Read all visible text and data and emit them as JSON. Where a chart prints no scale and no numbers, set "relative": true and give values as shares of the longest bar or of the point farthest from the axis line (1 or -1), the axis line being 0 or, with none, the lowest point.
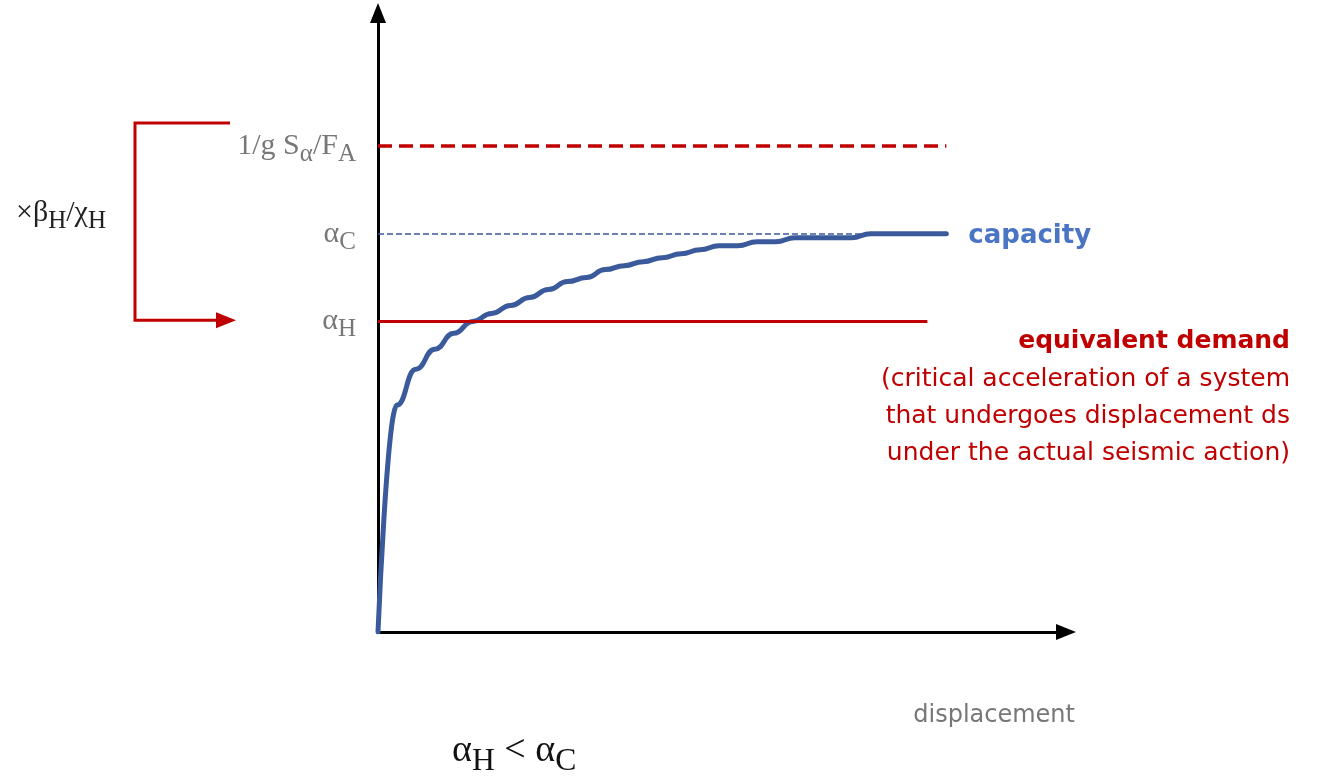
{
  "chart_data": {
    "type": "line",
    "relative": true,
    "xlabel": "displacement",
    "legend": false,
    "grid": false,
    "marker": "none",
    "line_style": "solid",
    "categories": [
      null,
      null,
      null,
      null,
      null,
      null,
      null,
      null,
      null,
      null,
      null,
      null,
      null,
      null,
      null,
      null,
      null,
      null,
      null,
      null,
      null,
      null,
      null,
      null,
      null,
      null,
      null,
      null,
      null,
      null,
      null,
      null,
      null,
      null,
      null,
      null,
      null
    ],
    "series": [
      {
        "name": "capacity",
        "color": "#3a5a9c",
        "values": [
          0,
          0.57,
          0.66,
          0.71,
          0.75,
          0.78,
          0.8,
          0.82,
          0.84,
          0.86,
          0.88,
          0.89,
          0.91,
          0.92,
          0.93,
          0.94,
          0.95,
          0.96,
          0.97,
          0.97,
          0.98,
          0.98,
          0.99,
          0.99,
          0.99,
          0.99,
          1,
          1,
          1,
          1,
          1,
          null,
          null,
          null,
          null,
          null,
          null
        ]
      }
    ],
    "ref_lines": [
      {
        "axis": "y",
        "value": 1.22,
        "label": "1/g S$_{α}$/F$_{A}$",
        "color": "#c00000",
        "line_style": "dashed"
      },
      {
        "axis": "y",
        "value": 1,
        "label": "α$_{C}$",
        "color": "#3a5a9c",
        "line_style": "dashed"
      },
      {
        "axis": "y",
        "value": 0.78,
        "label": "α$_{H}$",
        "color": "#c00000",
        "line_style": "solid"
      }
    ],
    "annotations": [
      "equivalent demand",
      "(critical acceleration of a system that undergoes displacement ds under the actual seismic action)",
      "×β$_{H}$/χ$_{H}$",
      "α$_{H}$ < α$_{C}$"
    ]
  }
}
